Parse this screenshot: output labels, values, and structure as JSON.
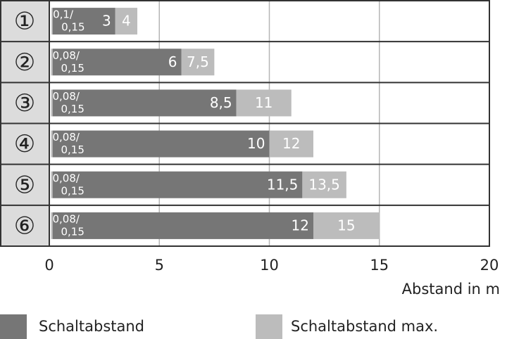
{
  "chart_data": {
    "type": "bar",
    "orientation": "horizontal",
    "categories": [
      "①",
      "②",
      "③",
      "④",
      "⑤",
      "⑥"
    ],
    "series": [
      {
        "name": "Schaltabstand",
        "color": "#767676",
        "values": [
          3,
          6,
          8.5,
          10,
          11.5,
          12
        ],
        "value_labels": [
          "3",
          "6",
          "8,5",
          "10",
          "11,5",
          "12"
        ]
      },
      {
        "name": "Schaltabstand max.",
        "color": "#bcbcbc",
        "values": [
          4,
          7.5,
          11,
          12,
          13.5,
          15
        ],
        "value_labels": [
          "4",
          "7,5",
          "11",
          "12",
          "13,5",
          "15"
        ]
      }
    ],
    "range_start": {
      "values": [
        0.1,
        0.08,
        0.08,
        0.08,
        0.08,
        0.08
      ],
      "value_labels": [
        "0,1/",
        "0,08/",
        "0,08/",
        "0,08/",
        "0,08/",
        "0,08/"
      ]
    },
    "range_end": {
      "values": [
        0.15,
        0.15,
        0.15,
        0.15,
        0.15,
        0.15
      ],
      "value_labels": [
        "0,15",
        "0,15",
        "0,15",
        "0,15",
        "0,15",
        "0,15"
      ]
    },
    "x_label": "Abstand in m",
    "xlim": [
      0,
      20
    ],
    "xticks": [
      0,
      5,
      10,
      15,
      20
    ],
    "grid": true
  }
}
